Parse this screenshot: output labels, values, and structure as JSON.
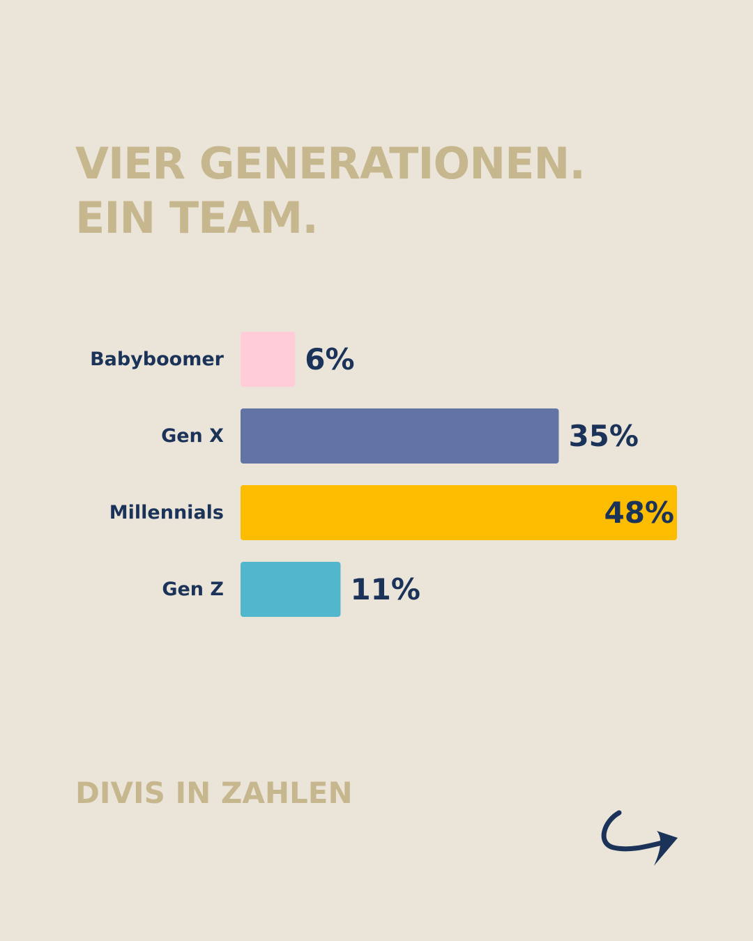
{
  "headline": {
    "line1": "VIER GENERATIONEN.",
    "line2": "EIN TEAM."
  },
  "footer": {
    "label": "DIVIS IN ZAHLEN"
  },
  "next_button": {
    "icon": "curved-arrow-right-icon"
  },
  "colors": {
    "background": "#ebe5d9",
    "heading": "#c7b78e",
    "text": "#1b3358"
  },
  "chart_data": {
    "type": "bar",
    "orientation": "horizontal",
    "categories": [
      "Babyboomer",
      "Gen X",
      "Millennials",
      "Gen Z"
    ],
    "values": [
      6,
      35,
      48,
      11
    ],
    "value_labels": [
      "6%",
      "35%",
      "48%",
      "11%"
    ],
    "colors": [
      "#ffccd8",
      "#6174a4",
      "#fcbd00",
      "#52b7cc"
    ],
    "unit": "%",
    "xlim": [
      0,
      48
    ],
    "grid": false,
    "legend": "none",
    "axes_visible": false
  }
}
